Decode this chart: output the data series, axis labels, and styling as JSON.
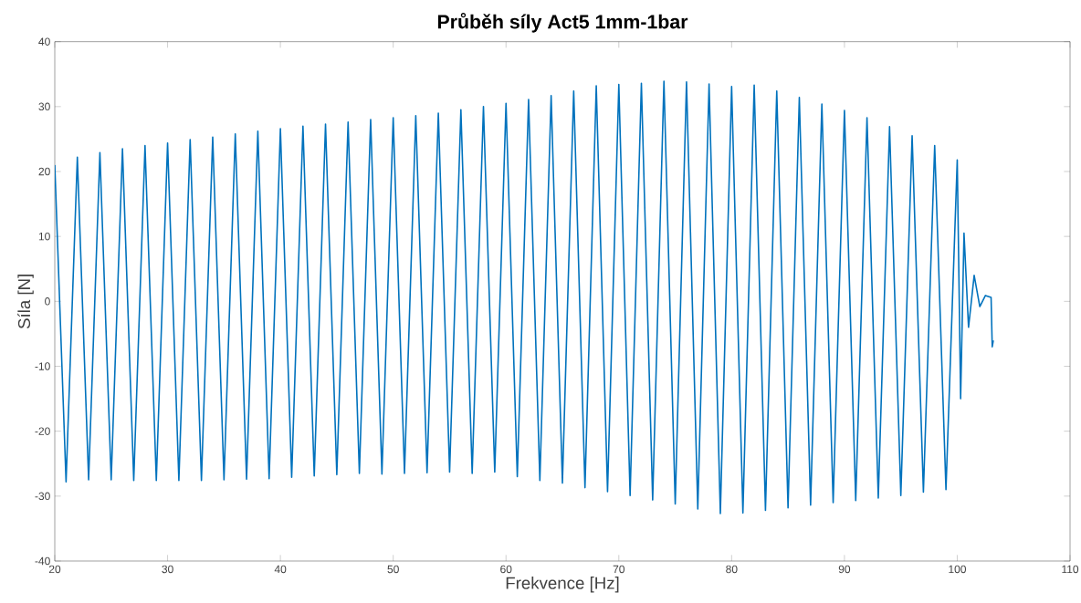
{
  "chart_data": {
    "type": "line",
    "title": "Průběh síly Act5 1mm-1bar",
    "xlabel": "Frekvence [Hz]",
    "ylabel": "Síla [N]",
    "xlim": [
      20,
      110
    ],
    "ylim": [
      -40,
      40
    ],
    "xticks": [
      20,
      30,
      40,
      50,
      60,
      70,
      80,
      90,
      100,
      110
    ],
    "yticks": [
      -40,
      -30,
      -20,
      -10,
      0,
      10,
      20,
      30,
      40
    ],
    "marker": "none",
    "line_style": "solid",
    "series": [
      {
        "color": "#0072bd",
        "x": [
          20,
          21,
          22,
          23,
          24,
          25,
          26,
          27,
          28,
          29,
          30,
          31,
          32,
          33,
          34,
          35,
          36,
          37,
          38,
          39,
          40,
          41,
          42,
          43,
          44,
          45,
          46,
          47,
          48,
          49,
          50,
          51,
          52,
          53,
          54,
          55,
          56,
          57,
          58,
          59,
          60,
          61,
          62,
          63,
          64,
          65,
          66,
          67,
          68,
          69,
          70,
          71,
          72,
          73,
          74,
          75,
          76,
          77,
          78,
          79,
          80,
          81,
          82,
          83,
          84,
          85,
          86,
          87,
          88,
          89,
          90,
          91,
          92,
          93,
          94,
          95,
          96,
          97,
          98,
          99,
          100,
          100.3,
          100.6,
          101,
          101.5,
          102,
          102.5,
          103,
          103.1,
          103.2
        ],
        "values": [
          21.0,
          -27.8,
          22.2,
          -27.5,
          22.9,
          -27.5,
          23.5,
          -27.6,
          24.0,
          -27.6,
          24.4,
          -27.6,
          24.9,
          -27.6,
          25.3,
          -27.5,
          25.8,
          -27.4,
          26.2,
          -27.3,
          26.6,
          -27.1,
          27.0,
          -26.9,
          27.3,
          -26.7,
          27.6,
          -26.5,
          28.0,
          -26.6,
          28.3,
          -26.5,
          28.6,
          -26.4,
          29.0,
          -26.3,
          29.5,
          -26.5,
          30.0,
          -26.3,
          30.5,
          -27.0,
          31.1,
          -27.6,
          31.7,
          -28.0,
          32.4,
          -28.7,
          33.2,
          -29.3,
          33.4,
          -29.9,
          33.6,
          -30.6,
          33.9,
          -31.2,
          33.8,
          -32.0,
          33.5,
          -32.7,
          33.1,
          -32.6,
          33.3,
          -32.2,
          32.4,
          -31.8,
          31.4,
          -31.4,
          30.4,
          -31.0,
          29.4,
          -30.7,
          28.3,
          -30.3,
          26.9,
          -29.9,
          25.5,
          -29.4,
          24.0,
          -29.0,
          21.8,
          -15,
          10.5,
          -4,
          4,
          -0.8,
          0.9,
          0.6,
          -7,
          -6
        ]
      }
    ]
  }
}
